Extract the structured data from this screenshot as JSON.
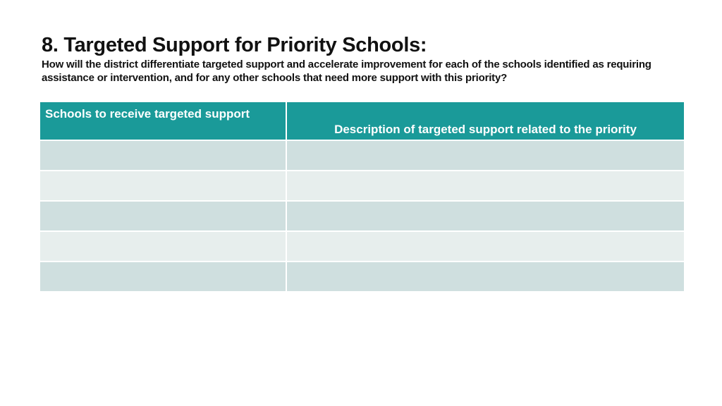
{
  "slide": {
    "title": "8. Targeted Support for Priority Schools:",
    "question": "How will the district differentiate targeted support and accelerate improvement for each of the schools identified as requiring assistance or intervention, and for any other schools that need more support with this priority?"
  },
  "table": {
    "header_colors": {
      "background": "#1a9a99",
      "text": "#ffffff"
    },
    "row_colors": [
      "#cfdfdf",
      "#e7eeed"
    ],
    "columns": [
      "Schools to receive targeted support",
      "Description of targeted support related to the priority"
    ],
    "rows": [
      [
        "",
        ""
      ],
      [
        "",
        ""
      ],
      [
        "",
        ""
      ],
      [
        "",
        ""
      ],
      [
        "",
        ""
      ]
    ]
  }
}
